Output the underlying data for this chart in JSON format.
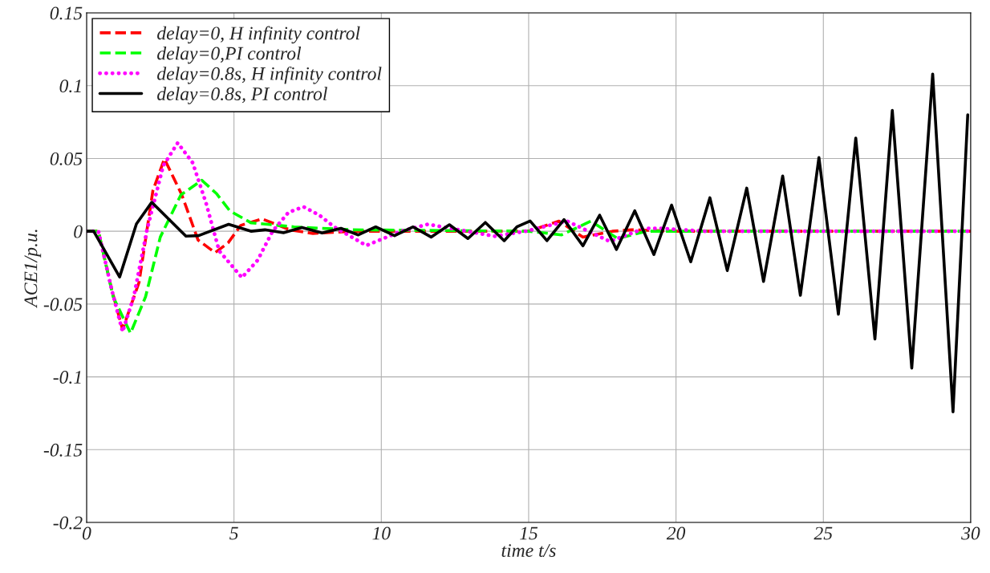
{
  "chart_data": {
    "type": "line",
    "xlabel": "time t/s",
    "ylabel": "ACE1/p.u.",
    "xlim": [
      0,
      30
    ],
    "ylim": [
      -0.2,
      0.15
    ],
    "xticks": [
      0,
      5,
      10,
      15,
      20,
      25,
      30
    ],
    "yticks": [
      -0.2,
      -0.15,
      -0.1,
      -0.05,
      0,
      0.05,
      0.1,
      0.15
    ],
    "grid": true,
    "legend": "top left",
    "series": [
      {
        "name": "delay=0, H infinity control",
        "color": "#ff0000",
        "line_style": "dashed",
        "x": [
          0,
          0.4,
          0.85,
          1.22,
          1.78,
          2.25,
          2.64,
          3.23,
          3.78,
          4.36,
          4.8,
          5.23,
          5.95,
          6.9,
          7.68,
          9,
          11,
          13,
          15,
          16.03,
          16.84,
          17.84,
          18.5,
          20,
          25,
          30
        ],
        "values": [
          0,
          0,
          -0.04,
          -0.0675,
          -0.035,
          0.028,
          0.0497,
          0.025,
          -0.006,
          -0.0147,
          -0.008,
          0.004,
          0.0085,
          0.001,
          -0.0015,
          0,
          0,
          0,
          0,
          0.007,
          -0.004,
          0,
          0.001,
          0,
          0,
          0
        ]
      },
      {
        "name": "delay=0,PI control",
        "color": "#00ff00",
        "line_style": "dashed",
        "x": [
          0,
          0.4,
          0.9,
          1.49,
          2.0,
          2.5,
          3.2,
          3.91,
          4.4,
          4.86,
          5.58,
          7.04,
          9,
          12,
          15,
          16.12,
          17.11,
          18.02,
          19,
          20,
          25,
          30
        ],
        "values": [
          0,
          0,
          -0.045,
          -0.07,
          -0.045,
          -0.004,
          0.025,
          0.035,
          0.026,
          0.014,
          0.0058,
          0.003,
          0.001,
          0.0005,
          0,
          -0.0025,
          0.007,
          -0.005,
          0,
          0,
          0,
          0
        ]
      },
      {
        "name": "delay=0.8s, H infinity control",
        "color": "#ff00ff",
        "line_style": "dotted",
        "x": [
          0,
          0.4,
          0.85,
          1.22,
          1.6,
          2.05,
          2.6,
          3.09,
          3.6,
          4.05,
          4.5,
          5.27,
          5.8,
          6.31,
          6.85,
          7.36,
          7.9,
          8.4,
          9.49,
          10.67,
          11.58,
          13.85,
          14.9,
          16.3,
          17.75,
          18.93,
          19.5,
          21,
          25,
          30
        ],
        "values": [
          0,
          0,
          -0.04,
          -0.069,
          -0.045,
          0.001,
          0.045,
          0.0607,
          0.047,
          0.0195,
          -0.0135,
          -0.0318,
          -0.02,
          0,
          0.013,
          0.0168,
          0.011,
          0.003,
          -0.0098,
          0,
          0.0048,
          -0.0034,
          0,
          0.007,
          -0.007,
          0.002,
          0.002,
          0,
          0,
          0
        ]
      },
      {
        "name": "delay=0.8s, PI control",
        "color": "#000000",
        "line_style": "solid",
        "x": [
          0,
          0.24,
          1.12,
          1.69,
          2.21,
          3.37,
          3.8,
          4.82,
          5.59,
          6.05,
          6.68,
          7.31,
          7.99,
          8.63,
          9.22,
          9.81,
          10.45,
          11.08,
          11.69,
          12.31,
          12.94,
          13.53,
          14.17,
          14.6,
          15.05,
          15.62,
          16.2,
          16.84,
          17.41,
          17.98,
          18.6,
          19.25,
          19.85,
          20.5,
          21.15,
          21.74,
          22.4,
          22.97,
          23.62,
          24.22,
          24.85,
          25.51,
          26.1,
          26.75,
          27.34,
          28.0,
          28.71,
          29.4,
          29.9
        ],
        "values": [
          0,
          0,
          -0.0314,
          0.005,
          0.0199,
          -0.0034,
          -0.003,
          0.0048,
          0,
          0.001,
          -0.001,
          0.0025,
          -0.0012,
          0.002,
          -0.0025,
          0.003,
          -0.003,
          0.003,
          -0.004,
          0.0045,
          -0.005,
          0.006,
          -0.0065,
          0.003,
          0.007,
          -0.0065,
          0.008,
          -0.01,
          0.011,
          -0.0125,
          0.014,
          -0.016,
          0.018,
          -0.021,
          0.023,
          -0.027,
          0.0296,
          -0.0345,
          0.038,
          -0.044,
          0.0506,
          -0.057,
          0.064,
          -0.074,
          0.083,
          -0.094,
          0.108,
          -0.124,
          0.08
        ]
      }
    ]
  }
}
